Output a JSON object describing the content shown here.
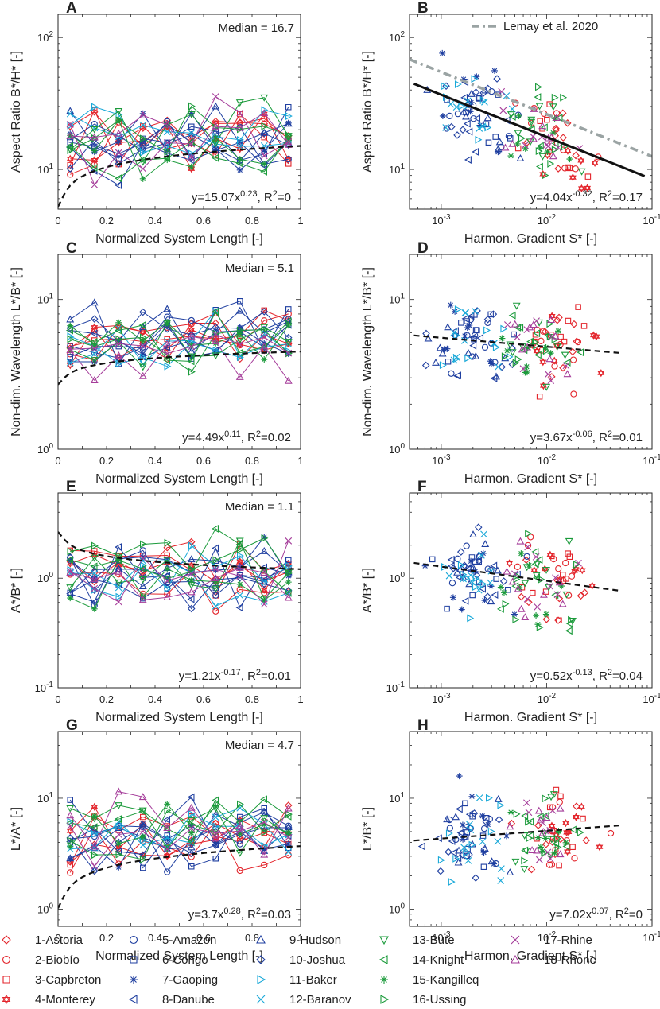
{
  "legend": [
    {
      "label": "1-Astoria",
      "color": "#e3242b",
      "marker": "diamond"
    },
    {
      "label": "2-Biobío",
      "color": "#e3242b",
      "marker": "circle"
    },
    {
      "label": "3-Capbreton",
      "color": "#e3242b",
      "marker": "square"
    },
    {
      "label": "4-Monterey",
      "color": "#e3242b",
      "marker": "hexagram"
    },
    {
      "label": "5-Amazon",
      "color": "#1f3fa0",
      "marker": "circle"
    },
    {
      "label": "6-Congo",
      "color": "#1f3fa0",
      "marker": "square"
    },
    {
      "label": "7-Gaoping",
      "color": "#1f3fa0",
      "marker": "asterisk"
    },
    {
      "label": "8-Danube",
      "color": "#1f3fa0",
      "marker": "triangle-left"
    },
    {
      "label": "9-Hudson",
      "color": "#1f3fa0",
      "marker": "triangle-up"
    },
    {
      "label": "10-Joshua",
      "color": "#1f3fa0",
      "marker": "diamond"
    },
    {
      "label": "11-Baker",
      "color": "#18a8d8",
      "marker": "triangle-right"
    },
    {
      "label": "12-Baranov",
      "color": "#18a8d8",
      "marker": "x"
    },
    {
      "label": "13-Bute",
      "color": "#1a9a3a",
      "marker": "triangle-down"
    },
    {
      "label": "14-Knight",
      "color": "#1a9a3a",
      "marker": "triangle-left"
    },
    {
      "label": "15-Kangilleq",
      "color": "#1a9a3a",
      "marker": "asterisk"
    },
    {
      "label": "16-Ussing",
      "color": "#1a9a3a",
      "marker": "triangle-right"
    },
    {
      "label": "17-Rhine",
      "color": "#a53d9a",
      "marker": "x"
    },
    {
      "label": "18-Rhone",
      "color": "#a53d9a",
      "marker": "triangle-up"
    }
  ],
  "chart_data": [
    {
      "panel": "A",
      "type": "line",
      "xlabel": "Normalized System Length [-]",
      "ylabel": "Aspect Ratio B*/H* [-]",
      "xscale": "linear",
      "yscale": "log",
      "xlim": [
        0,
        1
      ],
      "ylim": [
        5,
        150
      ],
      "xticks": [
        {
          "v": 0,
          "t": "0"
        },
        {
          "v": 0.2,
          "t": "0.2"
        },
        {
          "v": 0.4,
          "t": "0.4"
        },
        {
          "v": 0.6,
          "t": "0.6"
        },
        {
          "v": 0.8,
          "t": "0.8"
        },
        {
          "v": 1,
          "t": "1"
        }
      ],
      "yticks": [
        {
          "v": 10,
          "t": "10",
          "e": "1"
        },
        {
          "v": 100,
          "t": "10",
          "e": "2"
        }
      ],
      "median": "Median = 16.7",
      "fit": {
        "a": 15.07,
        "b": 0.23,
        "x0": 0,
        "x1": 1
      },
      "fit_label": {
        "pre": "y=15.07x",
        "exp": "0.23",
        "mid": ", R",
        "exp2": "2",
        "post": "=0"
      },
      "median_y": 16.7
    },
    {
      "panel": "B",
      "type": "scatter",
      "xlabel": "Harmon. Gradient S* [-]",
      "ylabel": "Aspect Ratio B*/H* [-]",
      "xscale": "log",
      "yscale": "log",
      "xlim": [
        0.0005,
        0.1
      ],
      "ylim": [
        5,
        150
      ],
      "xticks": [
        {
          "v": 0.001,
          "t": "10",
          "e": "-3"
        },
        {
          "v": 0.01,
          "t": "10",
          "e": "-2"
        },
        {
          "v": 0.1,
          "t": "10",
          "e": "-1"
        }
      ],
      "yticks": [
        {
          "v": 10,
          "t": "10",
          "e": "1"
        },
        {
          "v": 100,
          "t": "10",
          "e": "2"
        }
      ],
      "fit": {
        "a": 4.04,
        "b": -0.32,
        "x0": 0.00055,
        "x1": 0.085
      },
      "ref": {
        "label": "Lemay et al. 2020",
        "a": 6.0,
        "b": -0.32,
        "x0": 0.0005,
        "x1": 0.1
      },
      "fit_label": {
        "pre": "y=4.04x",
        "exp": "-0.32",
        "mid": ", R",
        "exp2": "2",
        "post": "=0.17"
      }
    },
    {
      "panel": "C",
      "type": "line",
      "xlabel": "Normalized System Length [-]",
      "ylabel": "Non-dim. Wavelength L*/B* [-]",
      "xscale": "linear",
      "yscale": "log",
      "xlim": [
        0,
        1
      ],
      "ylim": [
        1,
        20
      ],
      "xticks": [
        {
          "v": 0,
          "t": "0"
        },
        {
          "v": 0.2,
          "t": "0.2"
        },
        {
          "v": 0.4,
          "t": "0.4"
        },
        {
          "v": 0.6,
          "t": "0.6"
        },
        {
          "v": 0.8,
          "t": "0.8"
        },
        {
          "v": 1,
          "t": "1"
        }
      ],
      "yticks": [
        {
          "v": 1,
          "t": "10",
          "e": "0"
        },
        {
          "v": 10,
          "t": "10",
          "e": "1"
        }
      ],
      "median": "Median = 5.1",
      "fit": {
        "a": 4.49,
        "b": 0.11,
        "x0": 0,
        "x1": 1
      },
      "fit_label": {
        "pre": "y=4.49x",
        "exp": "0.11",
        "mid": ", R",
        "exp2": "2",
        "post": "=0.02"
      },
      "median_y": 5.1
    },
    {
      "panel": "D",
      "type": "scatter",
      "xlabel": "Harmon. Gradient S* [-]",
      "ylabel": "Non-dim. Wavelength L*/B* [-]",
      "xscale": "log",
      "yscale": "log",
      "xlim": [
        0.0005,
        0.1
      ],
      "ylim": [
        1,
        20
      ],
      "xticks": [
        {
          "v": 0.001,
          "t": "10",
          "e": "-3"
        },
        {
          "v": 0.01,
          "t": "10",
          "e": "-2"
        },
        {
          "v": 0.1,
          "t": "10",
          "e": "-1"
        }
      ],
      "yticks": [
        {
          "v": 1,
          "t": "10",
          "e": "0"
        },
        {
          "v": 10,
          "t": "10",
          "e": "1"
        }
      ],
      "fit": {
        "a": 3.67,
        "b": -0.06,
        "x0": 0.00055,
        "x1": 0.05
      },
      "fit_label": {
        "pre": "y=3.67x",
        "exp": "-0.06",
        "mid": ", R",
        "exp2": "2",
        "post": "=0.01"
      }
    },
    {
      "panel": "E",
      "type": "line",
      "xlabel": "Normalized System Length [-]",
      "ylabel": "A*/B* [-]",
      "xscale": "linear",
      "yscale": "log",
      "xlim": [
        0,
        1
      ],
      "ylim": [
        0.1,
        6
      ],
      "xticks": [
        {
          "v": 0,
          "t": "0"
        },
        {
          "v": 0.2,
          "t": "0.2"
        },
        {
          "v": 0.4,
          "t": "0.4"
        },
        {
          "v": 0.6,
          "t": "0.6"
        },
        {
          "v": 0.8,
          "t": "0.8"
        },
        {
          "v": 1,
          "t": "1"
        }
      ],
      "yticks": [
        {
          "v": 0.1,
          "t": "10",
          "e": "-1"
        },
        {
          "v": 1,
          "t": "10",
          "e": "0"
        }
      ],
      "median": "Median = 1.1",
      "fit": {
        "a": 1.21,
        "b": -0.17,
        "x0": 0,
        "x1": 1
      },
      "fit_label": {
        "pre": "y=1.21x",
        "exp": "-0.17",
        "mid": ", R",
        "exp2": "2",
        "post": "=0.01"
      },
      "median_y": 1.1
    },
    {
      "panel": "F",
      "type": "scatter",
      "xlabel": "Harmon. Gradient S* [-]",
      "ylabel": "A*/B* [-]",
      "xscale": "log",
      "yscale": "log",
      "xlim": [
        0.0005,
        0.1
      ],
      "ylim": [
        0.1,
        6
      ],
      "xticks": [
        {
          "v": 0.001,
          "t": "10",
          "e": "-3"
        },
        {
          "v": 0.01,
          "t": "10",
          "e": "-2"
        },
        {
          "v": 0.1,
          "t": "10",
          "e": "-1"
        }
      ],
      "yticks": [
        {
          "v": 0.1,
          "t": "10",
          "e": "-1"
        },
        {
          "v": 1,
          "t": "10",
          "e": "0"
        }
      ],
      "fit": {
        "a": 0.52,
        "b": -0.13,
        "x0": 0.00055,
        "x1": 0.05
      },
      "fit_label": {
        "pre": "y=0.52x",
        "exp": "-0.13",
        "mid": ", R",
        "exp2": "2",
        "post": "=0.04"
      }
    },
    {
      "panel": "G",
      "type": "line",
      "xlabel": "Normalized System Length [-]",
      "ylabel": "L*/A* [-]",
      "xscale": "linear",
      "yscale": "log",
      "xlim": [
        0,
        1
      ],
      "ylim": [
        0.7,
        40
      ],
      "xticks": [
        {
          "v": 0,
          "t": "0"
        },
        {
          "v": 0.2,
          "t": "0.2"
        },
        {
          "v": 0.4,
          "t": "0.4"
        },
        {
          "v": 0.6,
          "t": "0.6"
        },
        {
          "v": 0.8,
          "t": "0.8"
        },
        {
          "v": 1,
          "t": "1"
        }
      ],
      "yticks": [
        {
          "v": 1,
          "t": "10",
          "e": "0"
        },
        {
          "v": 10,
          "t": "10",
          "e": "1"
        }
      ],
      "median": "Median = 4.7",
      "fit": {
        "a": 3.7,
        "b": 0.28,
        "x0": 0,
        "x1": 1
      },
      "fit_label": {
        "pre": "y=3.7x",
        "exp": "0.28",
        "mid": ", R",
        "exp2": "2",
        "post": "=0.03"
      },
      "median_y": 4.7
    },
    {
      "panel": "H",
      "type": "scatter",
      "xlabel": "Harmon. Gradient S* [-]",
      "ylabel": "L*/B* [-]",
      "xscale": "log",
      "yscale": "log",
      "xlim": [
        0.0005,
        0.1
      ],
      "ylim": [
        0.7,
        40
      ],
      "xticks": [
        {
          "v": 0.001,
          "t": "10",
          "e": "-3"
        },
        {
          "v": 0.01,
          "t": "10",
          "e": "-2"
        },
        {
          "v": 0.1,
          "t": "10",
          "e": "-1"
        }
      ],
      "yticks": [
        {
          "v": 1,
          "t": "10",
          "e": "0"
        },
        {
          "v": 10,
          "t": "10",
          "e": "1"
        }
      ],
      "fit": {
        "a": 7.02,
        "b": 0.07,
        "x0": 0.00055,
        "x1": 0.05
      },
      "fit_label": {
        "pre": "y=7.02x",
        "exp": "0.07",
        "mid": ", R",
        "exp2": "2",
        "post": "=0"
      }
    }
  ]
}
